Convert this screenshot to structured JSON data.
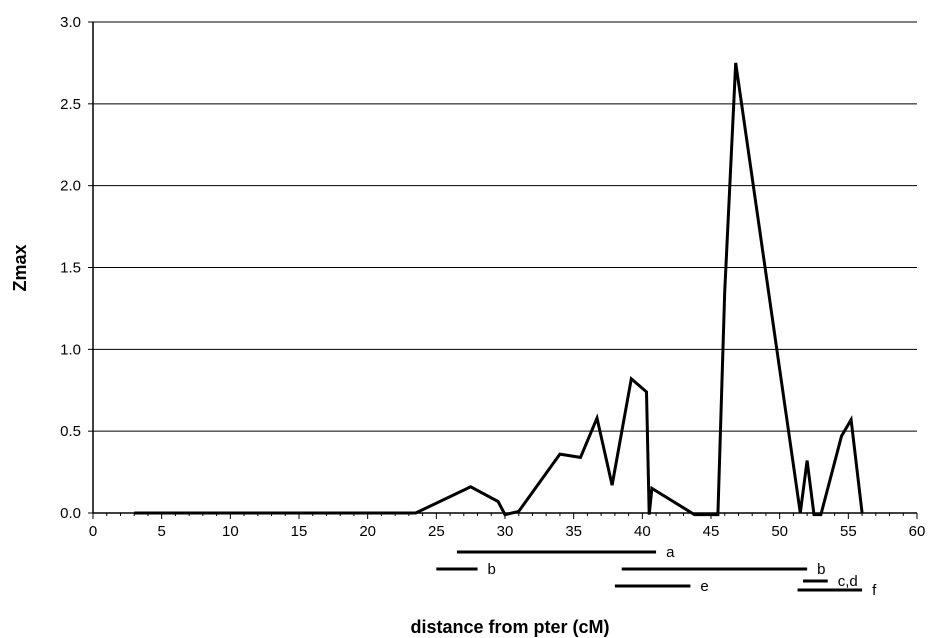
{
  "chart_data": {
    "type": "line",
    "xlabel": "distance from pter (cM)",
    "ylabel": "Zmax",
    "xlim": [
      0,
      60
    ],
    "ylim": [
      0,
      3.0
    ],
    "x_ticks": [
      "0",
      "5",
      "10",
      "15",
      "20",
      "25",
      "30",
      "35",
      "40",
      "45",
      "50",
      "55",
      "60"
    ],
    "y_ticks": [
      "0.0",
      "0.5",
      "1.0",
      "1.5",
      "2.0",
      "2.5",
      "3.0"
    ],
    "grid": "horizontal",
    "series": [
      {
        "x": [
          3,
          23.5,
          27.5,
          29.5,
          30,
          31,
          34,
          35.5,
          36.7,
          37.8,
          39.2,
          40.3,
          40.5,
          40.7,
          43.8,
          45.5,
          46,
          46.8,
          51.5,
          52,
          52.5,
          53,
          54.5,
          55.2,
          56
        ],
        "y": [
          0,
          0,
          0.16,
          0.07,
          -0.01,
          0.01,
          0.36,
          0.34,
          0.58,
          0.17,
          0.82,
          0.74,
          -0.01,
          0.15,
          -0.01,
          -0.01,
          1.35,
          2.75,
          0.0,
          0.32,
          -0.01,
          -0.01,
          0.47,
          0.57,
          0.0
        ]
      }
    ],
    "intervals": [
      {
        "label": "a",
        "start": 26.5,
        "end": 41
      },
      {
        "label": "b",
        "start": 25,
        "end": 28
      },
      {
        "label": "b",
        "start": 38.5,
        "end": 52
      },
      {
        "label": "c,d",
        "start": 51.7,
        "end": 53.5
      },
      {
        "label": "e",
        "start": 38,
        "end": 43.5
      },
      {
        "label": "f",
        "start": 51.3,
        "end": 56
      }
    ]
  }
}
